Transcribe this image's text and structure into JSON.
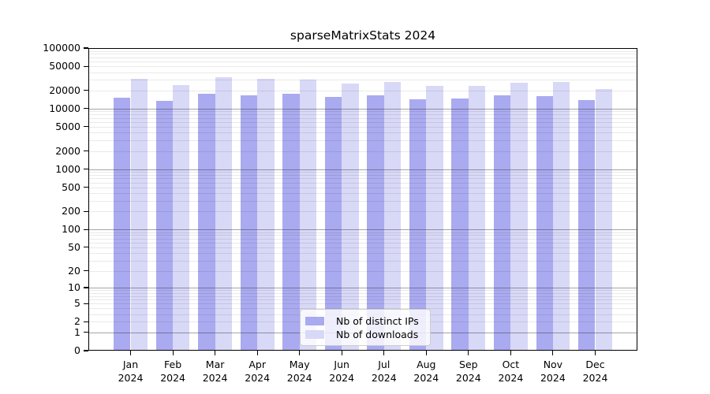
{
  "title": "sparseMatrixStats 2024",
  "legend": {
    "items": [
      {
        "label": "Nb of distinct IPs",
        "color": "#aaaaf0"
      },
      {
        "label": "Nb of downloads",
        "color": "#d8d8f7"
      }
    ],
    "position": "lower center"
  },
  "colors": {
    "distinct_ips": "#aaaaf0",
    "downloads": "#d8d8f7",
    "grid_major": "#999999",
    "grid_minor": "#e8e8e8",
    "axis": "#000000",
    "background": "#ffffff"
  },
  "chart_data": {
    "type": "bar",
    "title": "sparseMatrixStats 2024",
    "categories": [
      "Jan",
      "Feb",
      "Mar",
      "Apr",
      "May",
      "Jun",
      "Jul",
      "Aug",
      "Sep",
      "Oct",
      "Nov",
      "Dec"
    ],
    "x_year_label": "2024",
    "series": [
      {
        "name": "Nb of distinct IPs",
        "color": "#aaaaf0",
        "values": [
          15200,
          13500,
          17700,
          16700,
          17800,
          15600,
          16700,
          14200,
          14500,
          16500,
          16000,
          13800
        ]
      },
      {
        "name": "Nb of downloads",
        "color": "#d8d8f7",
        "values": [
          31300,
          24700,
          33200,
          30800,
          30400,
          25900,
          27300,
          23500,
          23500,
          26700,
          27500,
          20800
        ]
      }
    ],
    "xlabel": "",
    "ylabel": "",
    "yscale": "log1p",
    "ylim": [
      0,
      100000
    ],
    "yticks": [
      0,
      1,
      2,
      5,
      10,
      20,
      50,
      100,
      200,
      500,
      1000,
      2000,
      5000,
      10000,
      20000,
      50000,
      100000
    ],
    "grid": {
      "major_at": [
        1,
        10,
        100,
        1000,
        10000
      ],
      "minor_multiples": [
        2,
        3,
        4,
        5,
        6,
        7,
        8,
        9
      ],
      "drawn_over_bars": true
    },
    "legend_position": "lower center"
  }
}
